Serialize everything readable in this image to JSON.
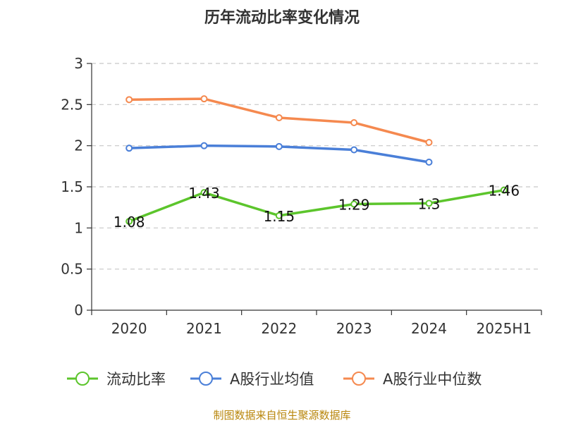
{
  "chart_data": {
    "type": "line",
    "title": "历年流动比率变化情况",
    "categories": [
      "2020",
      "2021",
      "2022",
      "2023",
      "2024",
      "2025H1"
    ],
    "ylim": [
      0,
      3
    ],
    "yticks": [
      "0",
      "0.5",
      "1",
      "1.5",
      "2",
      "2.5",
      "3"
    ],
    "grid": true,
    "legend_position": "bottom",
    "series": [
      {
        "name": "流动比率",
        "color": "#5cc52c",
        "values": [
          1.08,
          1.43,
          1.15,
          1.29,
          1.3,
          1.46
        ],
        "labels": [
          "1.08",
          "1.43",
          "1.15",
          "1.29",
          "1.3",
          "1.46"
        ]
      },
      {
        "name": "A股行业均值",
        "color": "#4a7fd8",
        "values": [
          1.97,
          2.0,
          1.99,
          1.95,
          1.8,
          null
        ]
      },
      {
        "name": "A股行业中位数",
        "color": "#f5894f",
        "values": [
          2.56,
          2.57,
          2.34,
          2.28,
          2.04,
          null
        ]
      }
    ]
  },
  "source_text": "制图数据来自恒生聚源数据库"
}
